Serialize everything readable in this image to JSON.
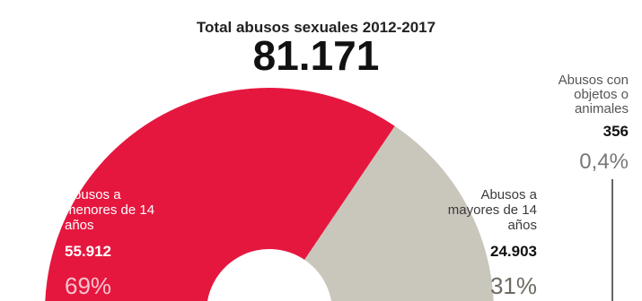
{
  "chart_data": {
    "type": "pie",
    "title": "Total abusos sexuales 2012-2017",
    "total": "81.171",
    "slices": [
      {
        "label": [
          "Abusos a",
          "menores de 14",
          "años"
        ],
        "value": 55912,
        "value_text": "55.912",
        "percent": "69%",
        "color": "#e5173f"
      },
      {
        "label": [
          "Abusos a",
          "mayores de 14",
          "años"
        ],
        "value": 24903,
        "value_text": "24.903",
        "percent": "31%",
        "color": "#c9c6bb"
      },
      {
        "label": [
          "Abusos con",
          "objetos o",
          "animales"
        ],
        "value": 356,
        "value_text": "356",
        "percent": "0,4%",
        "color": "#9b9990"
      }
    ]
  }
}
